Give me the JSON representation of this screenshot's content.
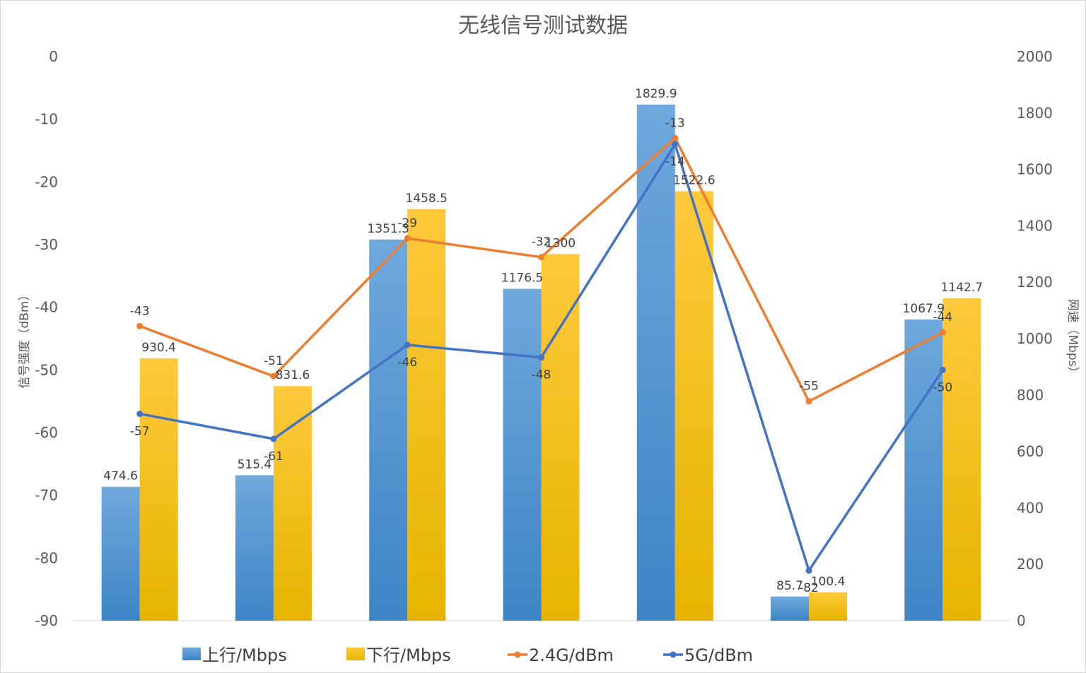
{
  "chart_data": {
    "type": "bar",
    "title": "无线信号测试数据",
    "y_left_label": "信号强度（dBm）",
    "y_right_label": "网速（Mbps）",
    "y_left_range": [
      -90,
      0
    ],
    "y_left_ticks": [
      "0",
      "-10",
      "-20",
      "-30",
      "-40",
      "-50",
      "-60",
      "-70",
      "-80",
      "-90"
    ],
    "y_right_range": [
      0,
      2000
    ],
    "y_right_ticks": [
      "2000",
      "1800",
      "1600",
      "1400",
      "1200",
      "1000",
      "800",
      "600",
      "400",
      "200",
      "0"
    ],
    "category_count": 7,
    "bar_series": [
      {
        "name": "上行/Mbps",
        "color": "#5b9bd5",
        "values": [
          474.6,
          515.4,
          1351.3,
          1176.5,
          1829.9,
          85.7,
          1067.9
        ],
        "labels": [
          "474.6",
          "515.4",
          "1351.3",
          "1176.5",
          "1829.9",
          "85.7",
          "1067.9"
        ]
      },
      {
        "name": "下行/Mbps",
        "color": "#ffc000",
        "values": [
          930.4,
          831.6,
          1458.5,
          1300,
          1522.6,
          100.4,
          1142.7
        ],
        "labels": [
          "930.4",
          "831.6",
          "1458.5",
          "1300",
          "1522.6",
          "100.4",
          "1142.7"
        ]
      }
    ],
    "line_series": [
      {
        "name": "2.4G/dBm",
        "color": "#ed7d31",
        "values": [
          -43,
          -51,
          -29,
          -32,
          -13,
          -55,
          -44
        ],
        "labels": [
          "-43",
          "-51",
          "-29",
          "-32",
          "-13",
          "-55",
          "-44"
        ]
      },
      {
        "name": "5G/dBm",
        "color": "#4472c4",
        "values": [
          -57,
          -61,
          -46,
          -48,
          -14,
          -82,
          -50
        ],
        "labels": [
          "-57",
          "-61",
          "-46",
          "-48",
          "-14",
          "-82",
          "-50"
        ]
      }
    ],
    "legend_position": "bottom",
    "grid": false
  }
}
